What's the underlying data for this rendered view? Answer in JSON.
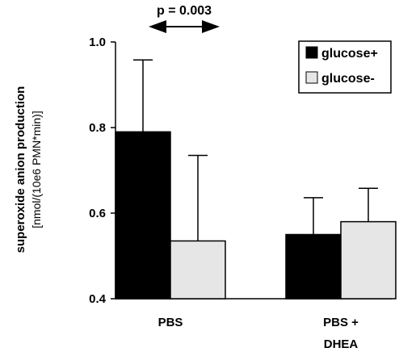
{
  "chart_data": {
    "type": "bar",
    "categories": [
      "PBS",
      "PBS +\nDHEA"
    ],
    "series": [
      {
        "name": "glucose+",
        "color": "#000000",
        "values": [
          0.79,
          0.55
        ],
        "errors": [
          0.168,
          0.086
        ]
      },
      {
        "name": "glucose-",
        "color": "#e6e6e6",
        "values": [
          0.535,
          0.58
        ],
        "errors": [
          0.2,
          0.078
        ]
      }
    ],
    "ylabel": "superoxide anion production",
    "ylabel_sub": "[nmol/(10e6 PMN*min)]",
    "ylim": [
      0.4,
      1.0
    ],
    "yticks": [
      "0.4",
      "0.6",
      "0.8",
      "1.0"
    ],
    "yticks_values": [
      0.4,
      0.6,
      0.8,
      1.0
    ],
    "annotation": {
      "text": "p = 0.003",
      "category": "PBS"
    },
    "legend_position": "top-right",
    "grid": false
  }
}
